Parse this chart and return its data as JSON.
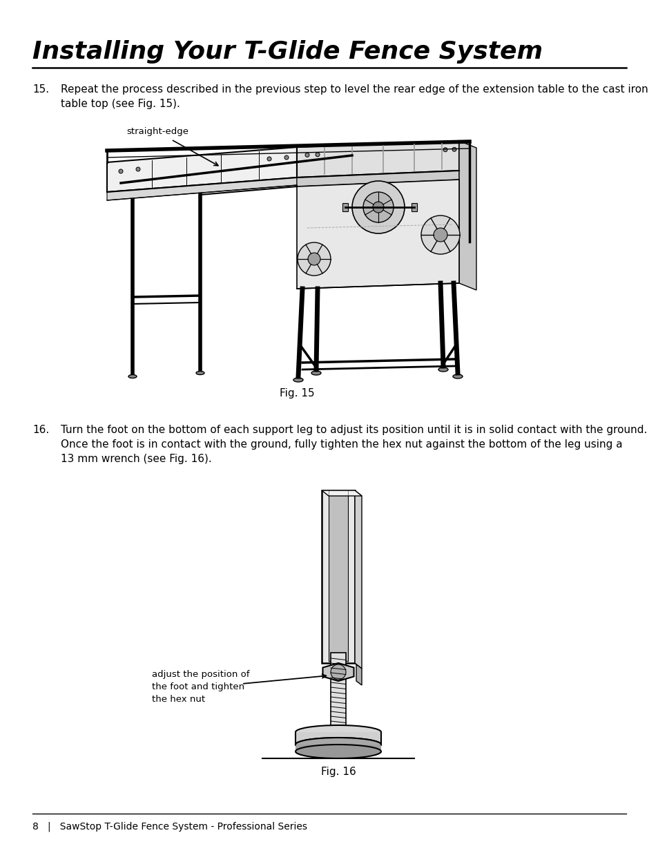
{
  "title": "Installing Your T-Glide Fence System",
  "background_color": "#ffffff",
  "text_color": "#000000",
  "step15_number": "15.",
  "step15_text": "Repeat the process described in the previous step to level the rear edge of the extension table to the cast iron\ntable top (see Fig. 15).",
  "step16_number": "16.",
  "step16_text": "Turn the foot on the bottom of each support leg to adjust its position until it is in solid contact with the ground.\nOnce the foot is in contact with the ground, fully tighten the hex nut against the bottom of the leg using a\n13 mm wrench (see Fig. 16).",
  "fig15_caption": "Fig. 15",
  "fig16_caption": "Fig. 16",
  "footer_text": "8   |   SawStop T-Glide Fence System - Professional Series",
  "straight_edge_label": "straight-edge",
  "adjust_label": "adjust the position of\nthe foot and tighten\nthe hex nut"
}
